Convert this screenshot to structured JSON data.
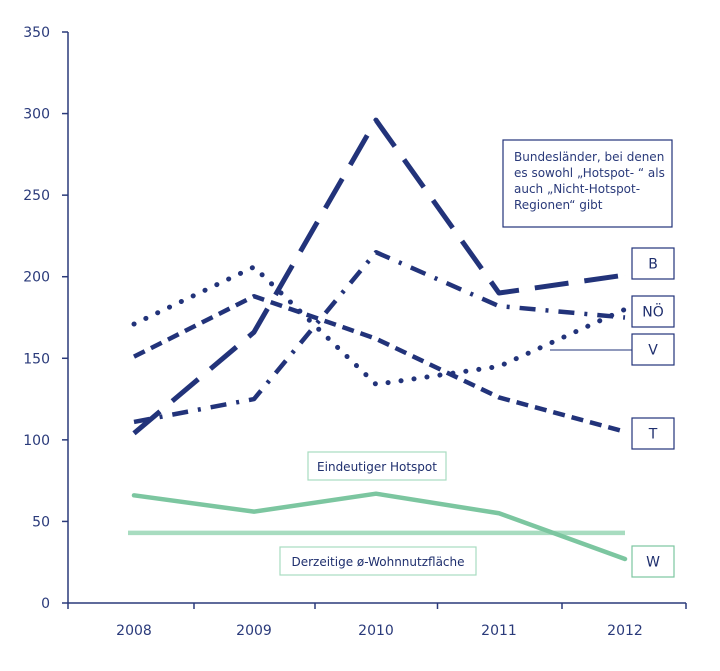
{
  "chart_data": {
    "type": "line",
    "categories": [
      "2008",
      "2009",
      "2010",
      "2011",
      "2012"
    ],
    "ylim": [
      0,
      350
    ],
    "yticks": [
      0,
      50,
      100,
      150,
      200,
      250,
      300,
      350
    ],
    "series": [
      {
        "name": "B",
        "values": [
          104,
          166,
          296,
          190,
          201
        ],
        "color": "#22337a",
        "dash": "long-dash"
      },
      {
        "name": "NÖ",
        "values": [
          111,
          125,
          215,
          182,
          175
        ],
        "color": "#22337a",
        "dash": "dash-dot"
      },
      {
        "name": "V",
        "values": [
          171,
          206,
          134,
          145,
          180
        ],
        "color": "#22337a",
        "dash": "dotted"
      },
      {
        "name": "T",
        "values": [
          151,
          188,
          162,
          126,
          105
        ],
        "color": "#22337a",
        "dash": "short-dash"
      },
      {
        "name": "W",
        "values": [
          66,
          56,
          67,
          55,
          27
        ],
        "color": "#7cc6a0",
        "dash": "solid"
      }
    ],
    "reference_line": {
      "value": 43,
      "label": "Derzeitige ø-Wohnnutzfläche",
      "color": "#a8dcc0"
    },
    "annotations": {
      "hotspot_label": "Eindeutiger Hotspot",
      "note_lines": [
        "Bundesländer, bei denen",
        "es sowohl „Hotspot- “ als",
        "auch „Nicht-Hotspot-",
        "Regionen“ gibt"
      ]
    }
  }
}
